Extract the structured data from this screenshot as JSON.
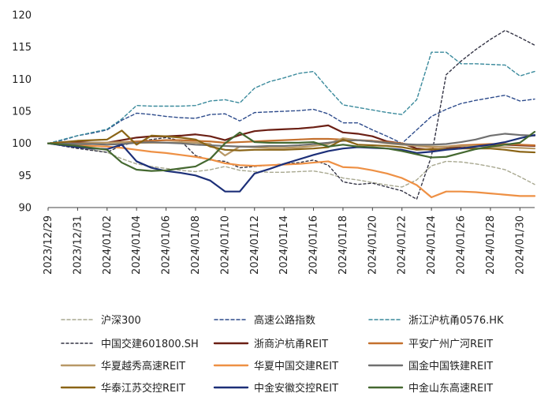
{
  "chart_data": {
    "type": "line",
    "title": "",
    "xlabel": "",
    "ylabel": "",
    "ylim": [
      90,
      120
    ],
    "yticks": [
      90,
      95,
      100,
      105,
      110,
      115,
      120
    ],
    "grid": false,
    "legend_position": "bottom",
    "x": [
      "2023/12/29",
      "2023/12/30",
      "2023/12/31",
      "2024/01/01",
      "2024/01/02",
      "2024/01/03",
      "2024/01/04",
      "2024/01/05",
      "2024/01/06",
      "2024/01/07",
      "2024/01/08",
      "2024/01/09",
      "2024/01/10",
      "2024/01/11",
      "2024/01/12",
      "2024/01/13",
      "2024/01/14",
      "2024/01/15",
      "2024/01/16",
      "2024/01/17",
      "2024/01/18",
      "2024/01/19",
      "2024/01/20",
      "2024/01/21",
      "2024/01/22",
      "2024/01/23",
      "2024/01/24",
      "2024/01/25",
      "2024/01/26",
      "2024/01/27",
      "2024/01/28",
      "2024/01/29",
      "2024/01/30",
      "2024/01/31"
    ],
    "xtick_labels": [
      "2023/12/29",
      "2023/12/31",
      "2024/01/02",
      "2024/01/04",
      "2024/01/06",
      "2024/01/08",
      "2024/01/10",
      "2024/01/12",
      "2024/01/14",
      "2024/01/16",
      "2024/01/18",
      "2024/01/20",
      "2024/01/22",
      "2024/01/24",
      "2024/01/26",
      "2024/01/28",
      "2024/01/30"
    ],
    "series": [
      {
        "name": "沪深300",
        "color": "#a8a890",
        "dash": "4,3",
        "values": [
          100,
          99.7,
          99.3,
          99,
          98.6,
          97.6,
          96.8,
          96.4,
          96.1,
          95.8,
          95.6,
          95.9,
          96.4,
          95.8,
          95.6,
          95.5,
          95.5,
          95.6,
          95.7,
          95.3,
          94.6,
          94.3,
          93.9,
          93.5,
          93.2,
          94.3,
          96.5,
          97.2,
          97.1,
          96.8,
          96.4,
          95.9,
          94.8,
          93.6
        ]
      },
      {
        "name": "高速公路指数",
        "color": "#2e4c8c",
        "dash": "4,3",
        "values": [
          100,
          100.5,
          101.2,
          101.6,
          102.1,
          103.6,
          104.7,
          104.5,
          104.2,
          104,
          103.9,
          104.5,
          104.6,
          103.5,
          104.8,
          104.9,
          105,
          105.1,
          105.3,
          104.6,
          103.2,
          103.2,
          102.1,
          101.1,
          100,
          102.1,
          104.2,
          105.3,
          106.2,
          106.7,
          107.1,
          107.5,
          106.6,
          106.9
        ]
      },
      {
        "name": "浙江沪杭甬0576.HK",
        "color": "#3a8a9c",
        "dash": "4,3",
        "values": [
          100,
          100.6,
          101.2,
          101.7,
          102.2,
          103.8,
          105.9,
          105.8,
          105.8,
          105.8,
          105.9,
          106.6,
          106.8,
          106.3,
          108.6,
          109.6,
          110.2,
          110.9,
          111.2,
          108.5,
          106,
          105.6,
          105.2,
          104.8,
          104.5,
          106.8,
          114.2,
          114.2,
          112.4,
          112.4,
          112.3,
          112.2,
          110.5,
          111.2
        ]
      },
      {
        "name": "中国交建601800.SH",
        "color": "#333344",
        "dash": "3,3",
        "values": [
          100,
          99.6,
          99.2,
          98.9,
          98.6,
          99.7,
          100.2,
          100.6,
          100.9,
          100.4,
          98.1,
          97.4,
          97.2,
          96.2,
          96.4,
          96.6,
          96.8,
          97,
          97.4,
          96.6,
          94,
          93.6,
          93.8,
          93.2,
          92.6,
          91.3,
          98,
          110.7,
          112.8,
          114.6,
          116.2,
          117.6,
          116.5,
          115.3
        ]
      },
      {
        "name": "浙商沪杭甬REIT",
        "color": "#6b1f14",
        "dash": "",
        "values": [
          100,
          100.1,
          100.2,
          100.1,
          100.1,
          100.5,
          100.9,
          101.1,
          101.1,
          101.2,
          101.4,
          101.1,
          100.5,
          101.3,
          101.9,
          102.1,
          102.2,
          102.3,
          102.5,
          102.8,
          101.7,
          101.5,
          101.1,
          100.3,
          100,
          99.2,
          99,
          99.2,
          99.5,
          99.7,
          99.8,
          99.8,
          99.7,
          99.6
        ]
      },
      {
        "name": "平安广州广河REIT",
        "color": "#c4702e",
        "dash": "",
        "values": [
          100,
          100,
          100,
          100,
          100.1,
          100.2,
          100.3,
          100.4,
          100.5,
          100.5,
          100.4,
          100.3,
          100.1,
          100.2,
          100.3,
          100.4,
          100.5,
          100.6,
          100.7,
          100.7,
          100.6,
          100.5,
          100.4,
          100.2,
          100,
          99.6,
          99.4,
          99.5,
          99.7,
          99.8,
          99.9,
          99.9,
          99.8,
          99.7
        ]
      },
      {
        "name": "华夏越秀高速REIT",
        "color": "#b89866",
        "dash": "",
        "values": [
          100,
          100,
          100,
          100.1,
          100.1,
          100.2,
          100.1,
          100.1,
          100.1,
          100.2,
          100.1,
          99.9,
          98.1,
          99.5,
          99.4,
          99.3,
          99.3,
          99.4,
          99.6,
          99.9,
          100.8,
          100.5,
          100.3,
          100,
          99.8,
          99.6,
          99.5,
          99.5,
          99.6,
          99.6,
          99.5,
          99.4,
          99.3,
          99.2
        ]
      },
      {
        "name": "华夏中国交建REIT",
        "color": "#ee9044",
        "dash": "",
        "values": [
          100,
          99.8,
          99.7,
          99.6,
          99.5,
          99.3,
          99,
          98.7,
          98.5,
          98.2,
          97.9,
          97.5,
          96.9,
          96.6,
          96.5,
          96.6,
          96.7,
          96.8,
          97,
          97.2,
          96.3,
          96.2,
          95.8,
          95.3,
          94.6,
          93.5,
          91.6,
          92.5,
          92.5,
          92.4,
          92.2,
          92,
          91.8,
          91.8
        ]
      },
      {
        "name": "国金中国铁建REIT",
        "color": "#707070",
        "dash": "",
        "values": [
          100,
          100,
          99.9,
          99.9,
          99.8,
          99.9,
          100.1,
          100.2,
          100.1,
          100,
          99.8,
          99.7,
          99.6,
          99.5,
          99.5,
          99.6,
          99.6,
          99.7,
          99.9,
          100.1,
          100.4,
          100.5,
          100.3,
          100.1,
          99.9,
          99.8,
          99.8,
          99.9,
          100.2,
          100.6,
          101.2,
          101.5,
          101.3,
          101.2
        ]
      },
      {
        "name": "华泰江苏交控REIT",
        "color": "#8a6416",
        "dash": "",
        "values": [
          100,
          100.2,
          100.4,
          100.5,
          100.6,
          102,
          99.8,
          101.2,
          101.1,
          100.9,
          100.6,
          99.5,
          99,
          98.9,
          99,
          99,
          99,
          99.1,
          99.2,
          99.4,
          100.6,
          99.8,
          99.7,
          99.6,
          99.4,
          99,
          99.1,
          99.1,
          99.2,
          99.2,
          99.2,
          99,
          98.7,
          98.6
        ]
      },
      {
        "name": "中金安徽交控REIT",
        "color": "#1c2f78",
        "dash": "",
        "values": [
          100,
          99.7,
          99.4,
          99.2,
          99.1,
          99.8,
          97.2,
          96.2,
          95.7,
          95.4,
          95,
          94.2,
          92.5,
          92.5,
          95.3,
          96,
          96.8,
          97.5,
          98.2,
          98.8,
          99.2,
          99.4,
          99.3,
          99.2,
          99,
          98.5,
          98.7,
          99,
          99.2,
          99.5,
          99.8,
          100.2,
          100.8,
          101.3
        ]
      },
      {
        "name": "中金山东高速REIT",
        "color": "#446830",
        "dash": "",
        "values": [
          100,
          99.8,
          99.6,
          99.3,
          99,
          97,
          95.9,
          95.7,
          95.8,
          96.1,
          96.4,
          97.6,
          100,
          101.7,
          100.2,
          100.1,
          100.1,
          100.1,
          100.2,
          99.5,
          99.8,
          99.5,
          99.4,
          99.2,
          98.8,
          98.3,
          97.8,
          97.9,
          98.5,
          99.1,
          99.5,
          99.8,
          100.1,
          101.8
        ]
      }
    ]
  }
}
